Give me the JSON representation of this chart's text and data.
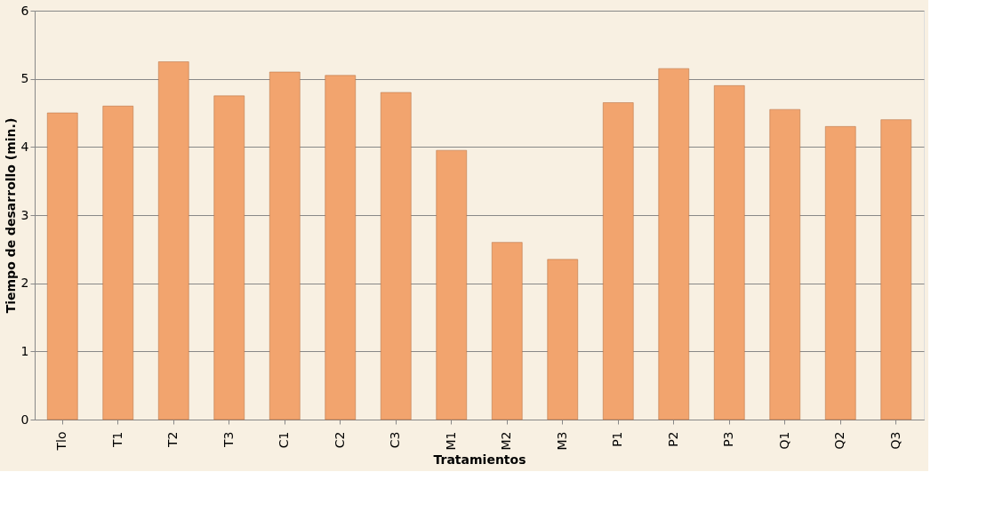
{
  "chart_data": {
    "type": "bar",
    "xlabel": "Tratamientos",
    "ylabel": "Tiempo de desarrollo (min.)",
    "categories": [
      "Tlo",
      "T1",
      "T2",
      "T3",
      "C1",
      "C2",
      "C3",
      "M1",
      "M2",
      "M3",
      "P1",
      "P2",
      "P3",
      "Q1",
      "Q2",
      "Q3"
    ],
    "values": [
      4.5,
      4.6,
      5.25,
      4.75,
      5.1,
      5.05,
      4.8,
      3.95,
      2.6,
      2.35,
      4.65,
      5.15,
      4.9,
      4.55,
      4.3,
      4.4
    ],
    "color": "#f2a46e",
    "ylim": [
      0,
      6
    ],
    "yticks": [
      0,
      1,
      2,
      3,
      4,
      5,
      6
    ],
    "grid": "y"
  }
}
